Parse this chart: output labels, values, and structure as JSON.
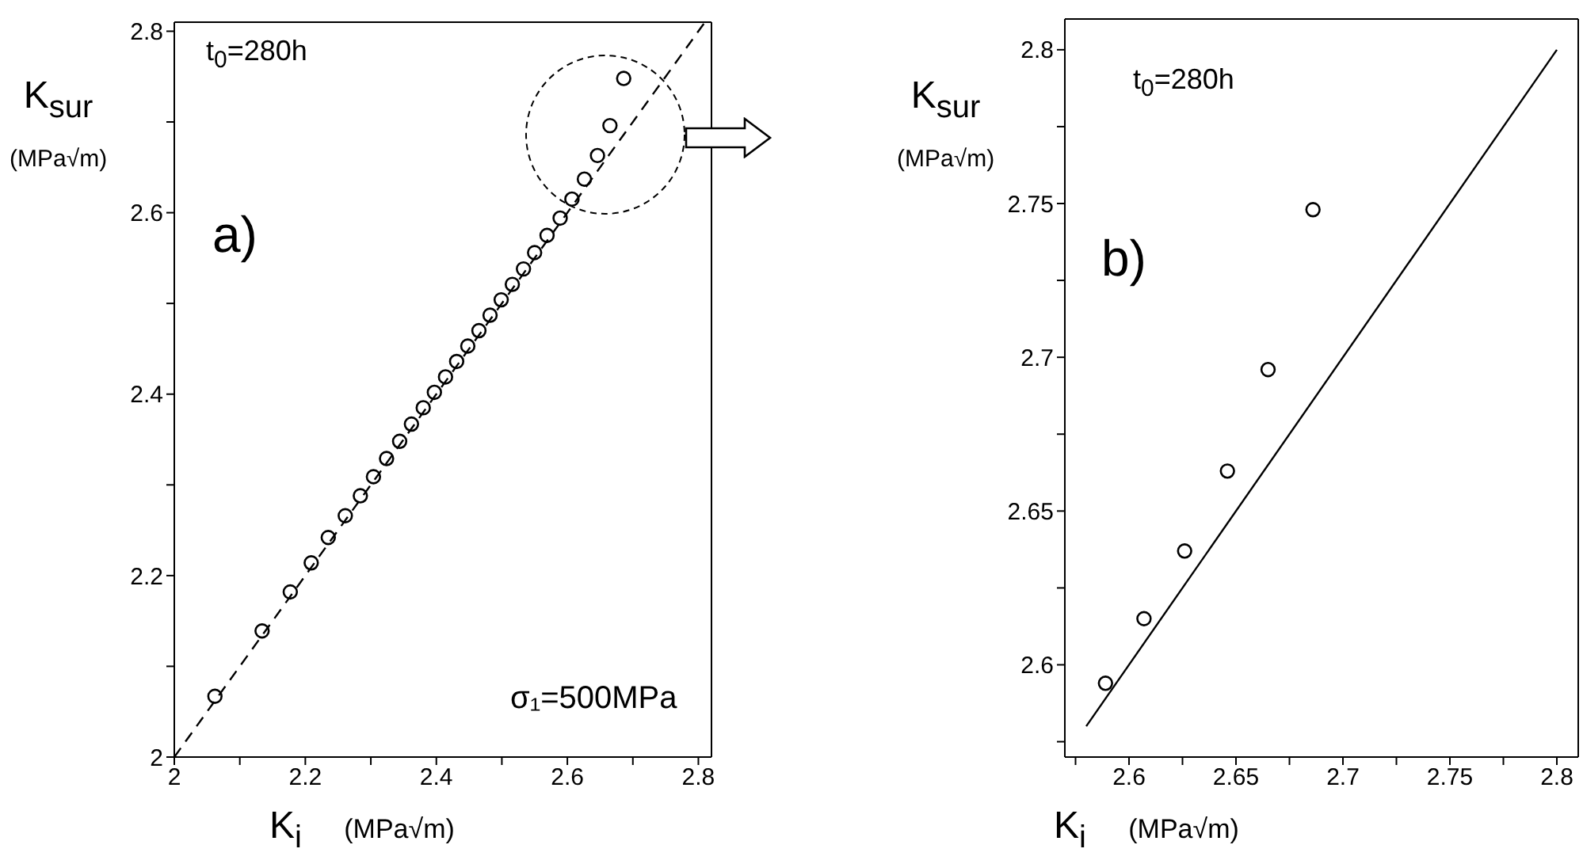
{
  "chart_data": [
    {
      "type": "scatter",
      "xlabel": "K$_{i}$    (MPa√m)",
      "ylabel": "K$_{sur}$\n(MPa√m)",
      "annotations": [
        "t$_{0}$=280h",
        "a)",
        "σ₁=500MPa"
      ],
      "xlim": [
        2,
        2.82
      ],
      "ylim": [
        2,
        2.81
      ],
      "xticks": [
        2,
        {
          "value": 2.1,
          "label": null
        },
        2.2,
        {
          "value": 2.3,
          "label": null
        },
        2.4,
        {
          "value": 2.5,
          "label": null
        },
        2.6,
        {
          "value": 2.7,
          "label": null
        },
        2.8
      ],
      "yticks": [
        2,
        {
          "value": 2.1,
          "label": null
        },
        2.2,
        {
          "value": 2.3,
          "label": null
        },
        2.4,
        {
          "value": 2.5,
          "label": null
        },
        2.6,
        {
          "value": 2.7,
          "label": null
        },
        2.8
      ],
      "series": [
        {
          "type": "scatter",
          "color": "#000000",
          "marker": "circle",
          "x": [
            2.062,
            2.134,
            2.177,
            2.209,
            2.235,
            2.261,
            2.284,
            2.304,
            2.324,
            2.344,
            2.362,
            2.38,
            2.397,
            2.414,
            2.431,
            2.448,
            2.465,
            2.482,
            2.499,
            2.516,
            2.533,
            2.55,
            2.569,
            2.589,
            2.607,
            2.626,
            2.646,
            2.665,
            2.686
          ],
          "values": [
            2.067,
            2.139,
            2.182,
            2.214,
            2.242,
            2.266,
            2.288,
            2.309,
            2.329,
            2.348,
            2.367,
            2.385,
            2.402,
            2.419,
            2.436,
            2.453,
            2.47,
            2.487,
            2.504,
            2.521,
            2.538,
            2.556,
            2.575,
            2.594,
            2.615,
            2.637,
            2.663,
            2.696,
            2.748
          ]
        },
        {
          "type": "line",
          "color": "#000000",
          "marker": "none",
          "line_style": "dashed",
          "x": [
            2,
            2.81
          ],
          "values": [
            2,
            2.81
          ]
        }
      ]
    },
    {
      "type": "scatter",
      "xlabel": "K$_{i}$    (MPa√m)",
      "ylabel": "K$_{sur}$\n(MPa√m)",
      "annotations": [
        "t$_{0}$=280h",
        "b)"
      ],
      "xlim": [
        2.57,
        2.81
      ],
      "ylim": [
        2.57,
        2.81
      ],
      "xticks": [
        {
          "value": 2.575,
          "label": null
        },
        2.6,
        {
          "value": 2.625,
          "label": null
        },
        2.65,
        {
          "value": 2.675,
          "label": null
        },
        2.7,
        {
          "value": 2.725,
          "label": null
        },
        2.75,
        {
          "value": 2.775,
          "label": null
        },
        2.8
      ],
      "yticks": [
        {
          "value": 2.575,
          "label": null
        },
        2.6,
        {
          "value": 2.625,
          "label": null
        },
        2.65,
        {
          "value": 2.675,
          "label": null
        },
        2.7,
        {
          "value": 2.725,
          "label": null
        },
        2.75,
        {
          "value": 2.775,
          "label": null
        },
        2.8
      ],
      "series": [
        {
          "type": "scatter",
          "color": "#000000",
          "marker": "circle",
          "x": [
            2.589,
            2.607,
            2.626,
            2.646,
            2.665,
            2.686
          ],
          "values": [
            2.594,
            2.615,
            2.637,
            2.663,
            2.696,
            2.748
          ]
        },
        {
          "type": "line",
          "color": "#000000",
          "marker": "none",
          "line_style": "solid",
          "x": [
            2.58,
            2.8
          ],
          "values": [
            2.58,
            2.8
          ]
        }
      ]
    }
  ]
}
